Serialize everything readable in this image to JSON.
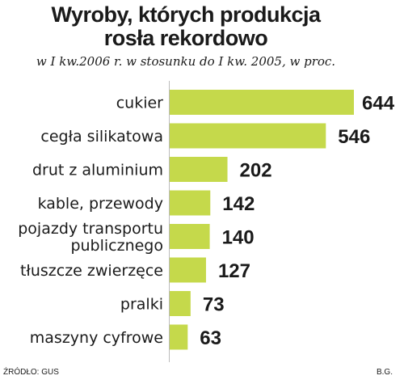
{
  "chart_data": {
    "type": "bar",
    "orientation": "horizontal",
    "title": "Wyroby, których produkcja rosła rekordowo",
    "subtitle": "w I kw.2006 r. w stosunku do I kw. 2005, w proc.",
    "categories": [
      "cukier",
      "cegła silikatowa",
      "drut z aluminium",
      "kable, przewody",
      [
        "pojazdy transportu",
        "publicznego"
      ],
      "tłuszcze zwierzęce",
      "pralki",
      "maszyny cyfrowe"
    ],
    "values": [
      644,
      546,
      202,
      142,
      140,
      127,
      73,
      63
    ],
    "value_labels": [
      "644",
      "546",
      "202",
      "142",
      "140",
      "127",
      "73",
      "63"
    ],
    "bar_color": "#c5d94b",
    "grid": false,
    "legend": "none"
  },
  "footer": {
    "source": "ŹRÓDŁO: GUS",
    "author": "B.G."
  }
}
